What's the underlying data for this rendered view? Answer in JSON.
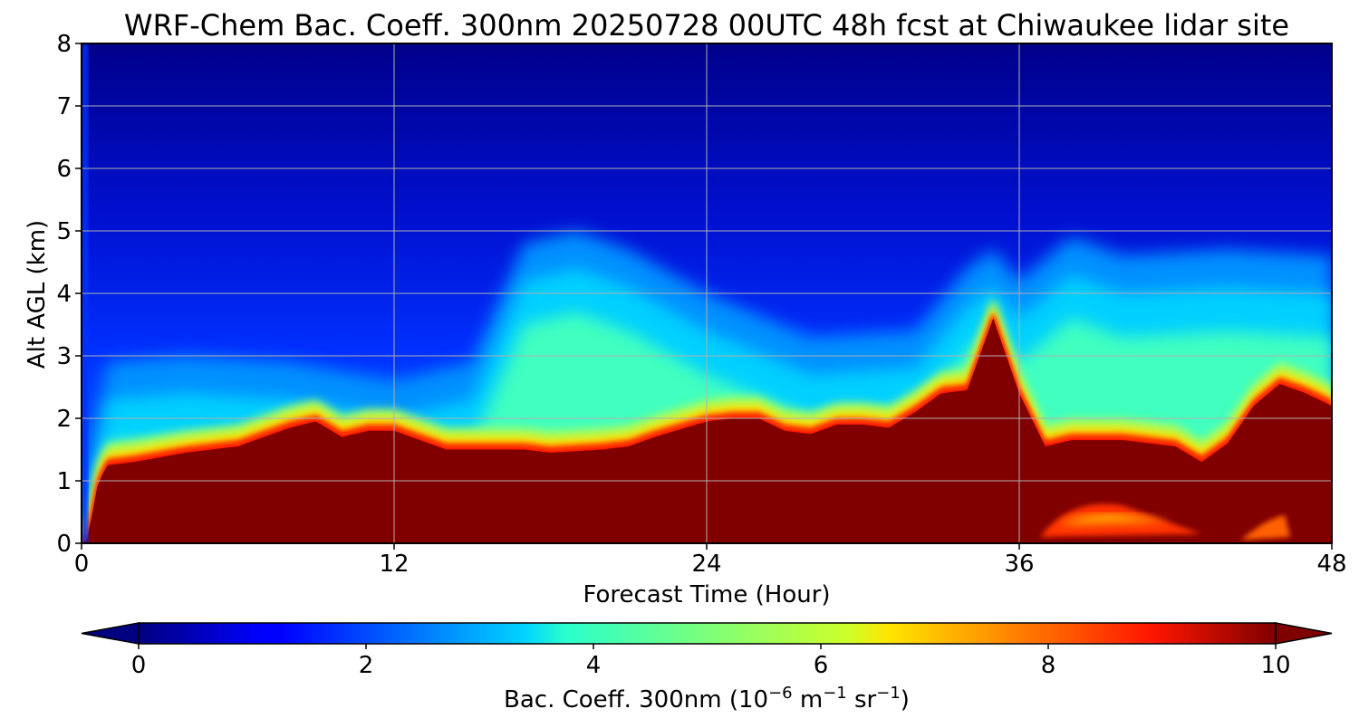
{
  "chart_data": {
    "type": "heatmap",
    "title": "WRF-Chem Bac. Coeff. 300nm  20250728 00UTC 48h fcst at Chiwaukee lidar site",
    "xlabel": "Forecast Time (Hour)",
    "ylabel": "Alt AGL (km)",
    "xlim": [
      0,
      48
    ],
    "ylim": [
      0,
      8
    ],
    "x_ticks": [
      0,
      12,
      24,
      36,
      48
    ],
    "x_tick_labels": [
      "0",
      "12",
      "24",
      "36",
      "48"
    ],
    "y_ticks": [
      0,
      1,
      2,
      3,
      4,
      5,
      6,
      7,
      8
    ],
    "y_tick_labels": [
      "0",
      "1",
      "2",
      "3",
      "4",
      "5",
      "6",
      "7",
      "8"
    ],
    "grid": true,
    "colormap": "jet",
    "colorbar": {
      "orientation": "horizontal",
      "extend": "both",
      "range": [
        0,
        10
      ],
      "ticks": [
        0,
        2,
        4,
        6,
        8,
        10
      ],
      "tick_labels": [
        "0",
        "2",
        "4",
        "6",
        "8",
        "10"
      ],
      "label_prefix": "Bac. Coeff. 300nm  (10",
      "label_exp1": "−6",
      "label_mid": " m",
      "label_exp2": "−1",
      "label_mid2": " sr",
      "label_exp3": "−1",
      "label_suffix": ")"
    },
    "z_units": "10^-6 m^-1 sr^-1",
    "z_range_shown": [
      0,
      10
    ],
    "saturated_layer_top_km": {
      "hours": [
        0,
        0.3,
        0.5,
        0.8,
        1,
        2,
        4,
        6,
        8,
        9,
        10,
        11,
        12,
        13,
        14,
        16,
        17,
        18,
        20,
        21,
        22,
        24,
        25,
        26,
        27,
        28,
        29,
        30,
        31,
        32,
        33,
        34,
        35,
        36,
        37,
        38,
        40,
        42,
        43,
        44,
        45,
        46,
        47,
        48
      ],
      "alt_km": [
        0,
        0.1,
        0.8,
        1.1,
        1.25,
        1.3,
        1.45,
        1.55,
        1.85,
        1.95,
        1.7,
        1.8,
        1.8,
        1.65,
        1.5,
        1.5,
        1.5,
        1.45,
        1.5,
        1.55,
        1.7,
        1.95,
        2.0,
        2.0,
        1.8,
        1.75,
        1.9,
        1.9,
        1.85,
        2.1,
        2.4,
        2.45,
        3.6,
        2.4,
        1.55,
        1.65,
        1.65,
        1.55,
        1.3,
        1.6,
        2.2,
        2.55,
        2.4,
        2.2
      ]
    },
    "near_surface_maximum_hours": [
      36,
      48
    ],
    "elevated_aerosol_layer_top_km": {
      "hours": [
        0,
        1,
        4,
        8,
        12,
        15,
        17,
        19,
        21,
        24,
        28,
        32,
        34,
        35,
        36,
        38,
        40,
        44,
        48
      ],
      "alt_km": [
        0,
        2.5,
        2.6,
        2.5,
        2.2,
        2.5,
        4.4,
        4.6,
        4.3,
        3.6,
        2.9,
        3.0,
        4.0,
        4.3,
        3.8,
        4.5,
        4.2,
        4.3,
        4.2
      ]
    }
  }
}
